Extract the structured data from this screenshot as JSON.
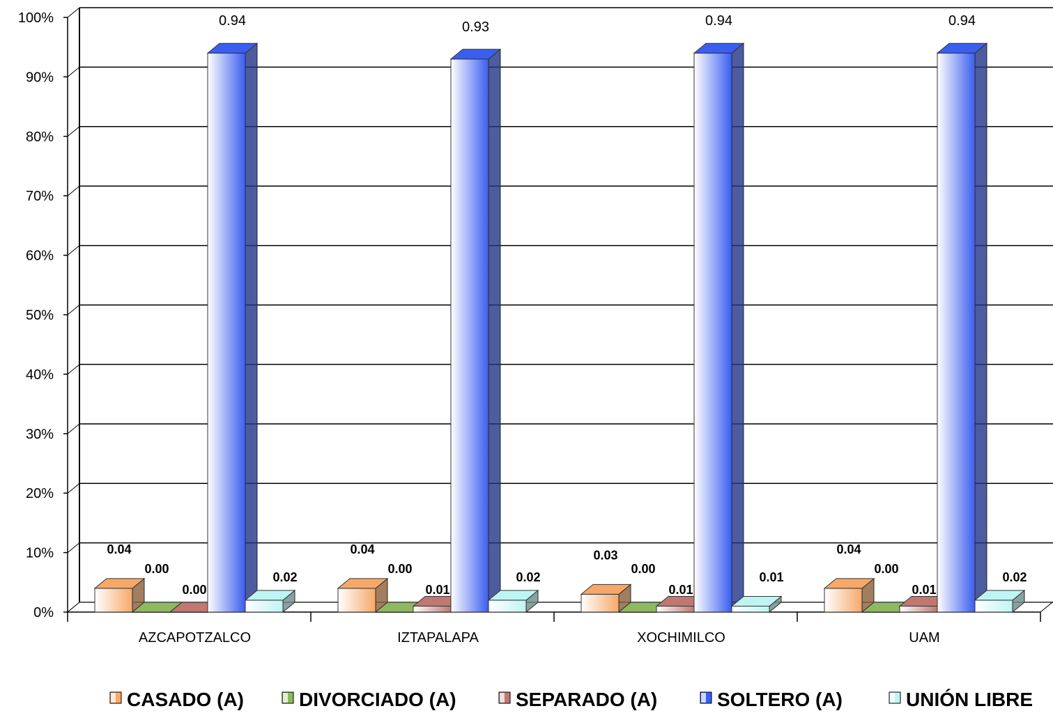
{
  "chart_data": {
    "type": "bar",
    "categories": [
      "AZCAPOTZALCO",
      "IZTAPALAPA",
      "XOCHIMILCO",
      "UAM"
    ],
    "series": [
      {
        "name": "CASADO (A)",
        "values": [
          0.04,
          0.04,
          0.03,
          0.04
        ],
        "labels": [
          "0.04",
          "0.04",
          "0.03",
          "0.04"
        ],
        "color": "#f7a868"
      },
      {
        "name": "DIVORCIADO (A)",
        "values": [
          0.0,
          0.0,
          0.0,
          0.0
        ],
        "labels": [
          "0.00",
          "0.00",
          "0.00",
          "0.00"
        ],
        "color": "#8fb860"
      },
      {
        "name": "SEPARADO (A)",
        "values": [
          0.0,
          0.01,
          0.01,
          0.01
        ],
        "labels": [
          "0.00",
          "0.01",
          "0.01",
          "0.01"
        ],
        "color": "#c07870"
      },
      {
        "name": "SOLTERO (A)",
        "values": [
          0.94,
          0.93,
          0.94,
          0.94
        ],
        "labels": [
          "0.94",
          "0.93",
          "0.94",
          "0.94"
        ],
        "color": "#3a5ef0"
      },
      {
        "name": "UNIÓN LIBRE",
        "values": [
          0.02,
          0.02,
          0.01,
          0.02
        ],
        "labels": [
          "0.02",
          "0.02",
          "0.01",
          "0.02"
        ],
        "color": "#bff4f4"
      }
    ],
    "y_ticks": [
      "0%",
      "10%",
      "20%",
      "30%",
      "40%",
      "50%",
      "60%",
      "70%",
      "80%",
      "90%",
      "100%"
    ],
    "ylim": [
      0,
      1
    ],
    "grid": true,
    "legend_position": "bottom",
    "style": "3d-clustered-column"
  }
}
